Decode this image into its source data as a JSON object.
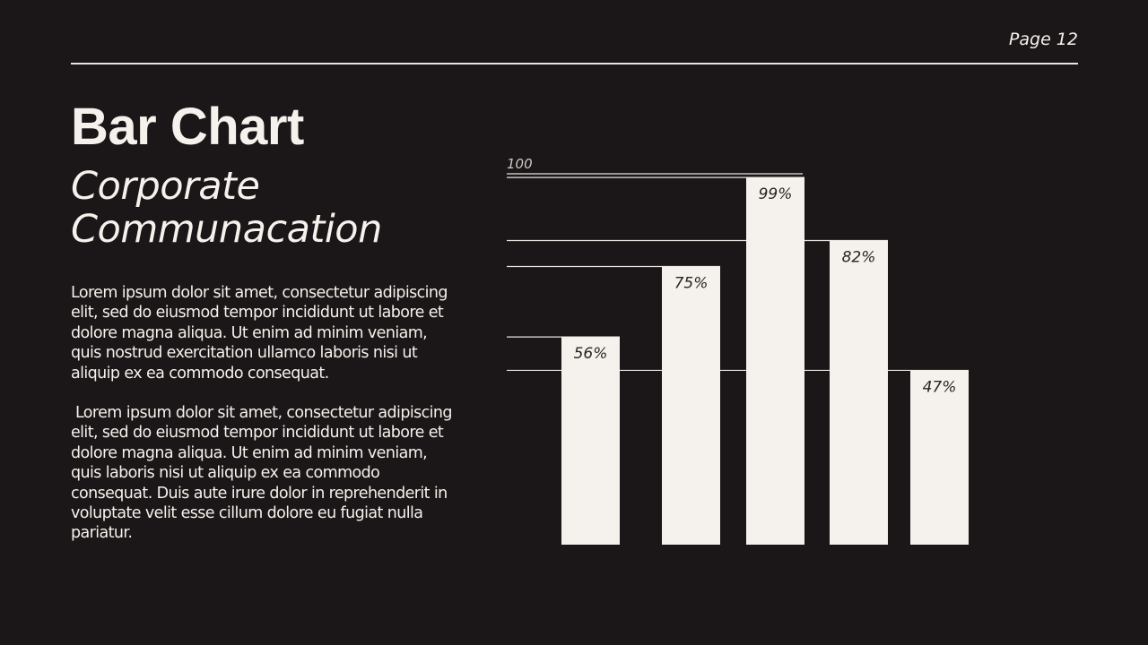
{
  "header": {
    "page": "Page 12"
  },
  "title": "Bar Chart",
  "subtitle": "Corporate Communacation",
  "paragraphs": [
    "Lorem ipsum dolor sit amet, consectetur adipiscing elit, sed do eiusmod tempor incididunt ut labore et dolore magna aliqua. Ut enim ad minim veniam, quis nostrud exercitation ullamco laboris nisi ut aliquip ex ea commodo consequat.",
    " Lorem ipsum dolor sit amet, consectetur adipiscing elit, sed do eiusmod tempor incididunt ut labore et dolore magna aliqua. Ut enim ad minim veniam, quis laboris nisi ut aliquip ex ea commodo consequat. Duis aute irure dolor in reprehenderit in voluptate velit esse cillum dolore eu fugiat nulla pariatur."
  ],
  "chart_data": {
    "type": "bar",
    "values": [
      56,
      75,
      99,
      82,
      47
    ],
    "labels": [
      "56%",
      "75%",
      "99%",
      "82%",
      "47%"
    ],
    "max_label": "100",
    "ylim": [
      0,
      100
    ],
    "grid": false,
    "colors": {
      "bar": "#f5f1ec",
      "background": "#1b1617",
      "line": "#e8e4df"
    }
  }
}
